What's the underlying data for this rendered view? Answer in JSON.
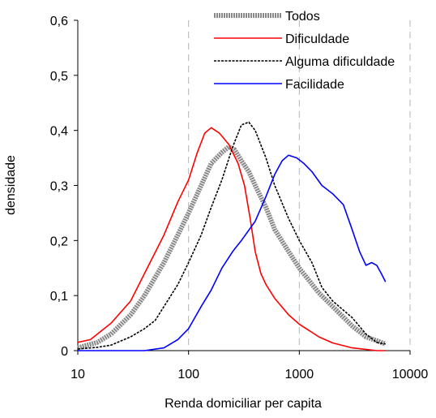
{
  "chart_data": {
    "type": "line",
    "xlabel": "Renda domiciliar per capita",
    "ylabel": "densidade",
    "x_scale": "log",
    "xlim": [
      10,
      10000
    ],
    "ylim": [
      0,
      0.6
    ],
    "x_ticks": [
      10,
      100,
      1000,
      10000
    ],
    "x_tick_labels": [
      "10",
      "100",
      "1000",
      "10000"
    ],
    "y_ticks": [
      0,
      0.1,
      0.2,
      0.3,
      0.4,
      0.5,
      0.6
    ],
    "y_tick_labels": [
      "0",
      "0,1",
      "0,2",
      "0,3",
      "0,4",
      "0,5",
      "0,6"
    ],
    "vertical_gridlines": "dashed, light gray, at x = 100, 1000, 10000",
    "legend_position": "top-right",
    "series": [
      {
        "name": "Todos",
        "style": "thick gray",
        "color": "#888888",
        "points": [
          [
            10,
            0.005
          ],
          [
            15,
            0.015
          ],
          [
            20,
            0.03
          ],
          [
            30,
            0.065
          ],
          [
            40,
            0.1
          ],
          [
            60,
            0.16
          ],
          [
            80,
            0.21
          ],
          [
            100,
            0.25
          ],
          [
            130,
            0.3
          ],
          [
            160,
            0.34
          ],
          [
            200,
            0.36
          ],
          [
            230,
            0.37
          ],
          [
            260,
            0.365
          ],
          [
            300,
            0.345
          ],
          [
            350,
            0.325
          ],
          [
            400,
            0.3
          ],
          [
            500,
            0.26
          ],
          [
            600,
            0.22
          ],
          [
            800,
            0.18
          ],
          [
            1000,
            0.15
          ],
          [
            1500,
            0.105
          ],
          [
            2000,
            0.08
          ],
          [
            3000,
            0.045
          ],
          [
            4000,
            0.025
          ],
          [
            5000,
            0.018
          ],
          [
            6000,
            0.012
          ]
        ]
      },
      {
        "name": "Dificuldade",
        "style": "solid",
        "color": "#ff0000",
        "points": [
          [
            10,
            0.015
          ],
          [
            13,
            0.02
          ],
          [
            15,
            0.03
          ],
          [
            20,
            0.05
          ],
          [
            30,
            0.09
          ],
          [
            40,
            0.14
          ],
          [
            60,
            0.21
          ],
          [
            80,
            0.27
          ],
          [
            100,
            0.31
          ],
          [
            120,
            0.36
          ],
          [
            140,
            0.395
          ],
          [
            160,
            0.405
          ],
          [
            190,
            0.395
          ],
          [
            230,
            0.375
          ],
          [
            280,
            0.34
          ],
          [
            320,
            0.3
          ],
          [
            360,
            0.24
          ],
          [
            400,
            0.18
          ],
          [
            450,
            0.14
          ],
          [
            500,
            0.12
          ],
          [
            600,
            0.095
          ],
          [
            800,
            0.065
          ],
          [
            1000,
            0.048
          ],
          [
            1500,
            0.025
          ],
          [
            2000,
            0.014
          ],
          [
            3000,
            0.005
          ],
          [
            5000,
            0.0
          ],
          [
            6000,
            0.0
          ]
        ]
      },
      {
        "name": "Alguma dificuldade",
        "style": "dotted",
        "color": "#000000",
        "points": [
          [
            10,
            0.003
          ],
          [
            15,
            0.006
          ],
          [
            20,
            0.01
          ],
          [
            30,
            0.025
          ],
          [
            40,
            0.04
          ],
          [
            50,
            0.055
          ],
          [
            60,
            0.08
          ],
          [
            80,
            0.12
          ],
          [
            100,
            0.16
          ],
          [
            130,
            0.21
          ],
          [
            160,
            0.26
          ],
          [
            200,
            0.31
          ],
          [
            250,
            0.37
          ],
          [
            300,
            0.41
          ],
          [
            350,
            0.415
          ],
          [
            400,
            0.4
          ],
          [
            500,
            0.35
          ],
          [
            600,
            0.3
          ],
          [
            800,
            0.24
          ],
          [
            1000,
            0.2
          ],
          [
            1300,
            0.16
          ],
          [
            1600,
            0.115
          ],
          [
            2000,
            0.09
          ],
          [
            3000,
            0.06
          ],
          [
            4000,
            0.03
          ],
          [
            5000,
            0.015
          ],
          [
            6000,
            0.012
          ]
        ]
      },
      {
        "name": "Facilidade",
        "style": "solid",
        "color": "#0000ff",
        "points": [
          [
            10,
            0.0
          ],
          [
            20,
            0.0
          ],
          [
            40,
            0.0
          ],
          [
            60,
            0.005
          ],
          [
            80,
            0.02
          ],
          [
            100,
            0.04
          ],
          [
            130,
            0.08
          ],
          [
            160,
            0.11
          ],
          [
            200,
            0.15
          ],
          [
            250,
            0.18
          ],
          [
            300,
            0.2
          ],
          [
            400,
            0.235
          ],
          [
            500,
            0.28
          ],
          [
            600,
            0.32
          ],
          [
            700,
            0.345
          ],
          [
            800,
            0.355
          ],
          [
            950,
            0.35
          ],
          [
            1100,
            0.34
          ],
          [
            1300,
            0.325
          ],
          [
            1600,
            0.3
          ],
          [
            2000,
            0.285
          ],
          [
            2500,
            0.265
          ],
          [
            3000,
            0.22
          ],
          [
            3500,
            0.18
          ],
          [
            4000,
            0.155
          ],
          [
            4500,
            0.16
          ],
          [
            5000,
            0.155
          ],
          [
            5500,
            0.14
          ],
          [
            6000,
            0.125
          ]
        ]
      }
    ]
  }
}
